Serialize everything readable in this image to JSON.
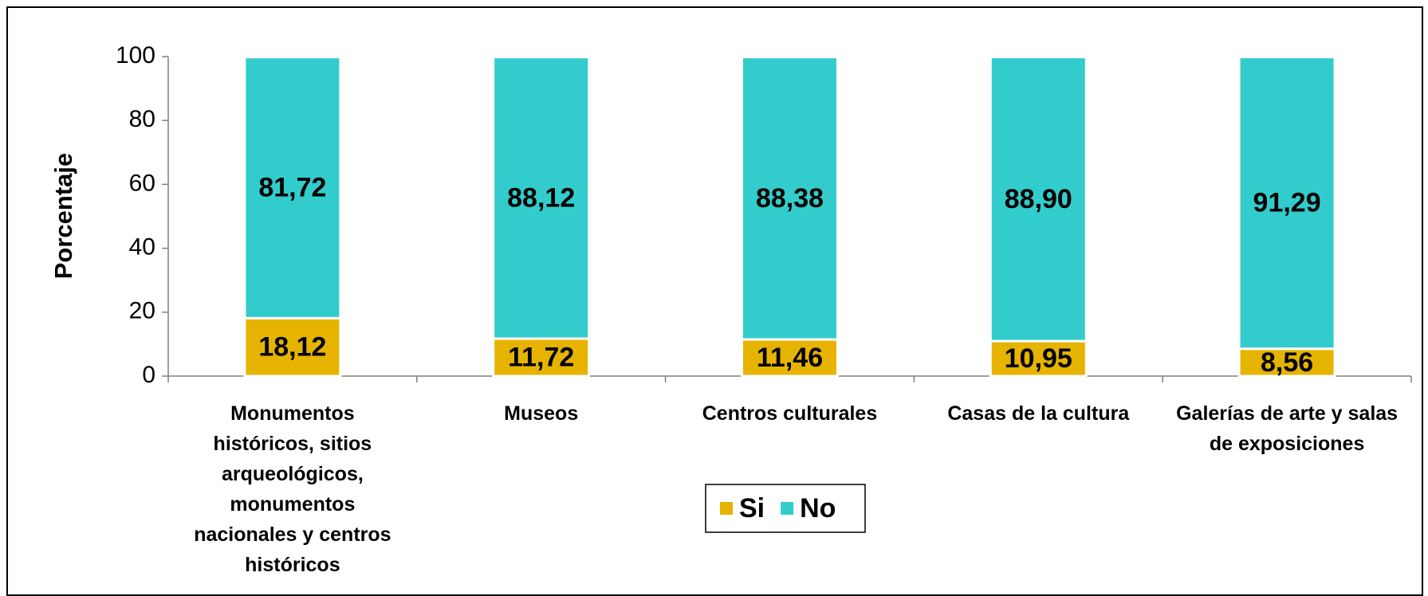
{
  "chart_data": {
    "type": "stacked_bar",
    "categories": [
      "Monumentos históricos, sitios arqueológicos, monumentos nacionales y centros históricos",
      "Museos",
      "Centros culturales",
      "Casas de la cultura",
      "Galerías de arte y salas de exposiciones"
    ],
    "series": [
      {
        "name": "Si",
        "color": "#e6b400",
        "values": [
          18.12,
          11.72,
          11.46,
          10.95,
          8.56
        ],
        "value_labels": [
          "18,12",
          "11,72",
          "11,46",
          "10,95",
          "8,56"
        ]
      },
      {
        "name": "No",
        "color": "#33cccc",
        "values": [
          81.72,
          88.12,
          88.38,
          88.9,
          91.29
        ],
        "value_labels": [
          "81,72",
          "88,12",
          "88,38",
          "88,90",
          "91,29"
        ]
      }
    ],
    "y_label": "Porcentaje",
    "ylim": [
      0,
      100
    ],
    "yticks": [
      0,
      20,
      40,
      60,
      80,
      100
    ],
    "legend": "bottom"
  }
}
